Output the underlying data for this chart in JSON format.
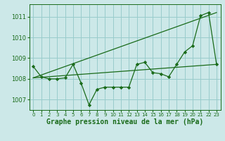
{
  "background_color": "#cce8e8",
  "grid_color": "#99cccc",
  "line_color": "#1a6b1a",
  "marker_color": "#1a6b1a",
  "xlabel": "Graphe pression niveau de la mer (hPa)",
  "xlabel_fontsize": 7,
  "xlim": [
    -0.5,
    23.5
  ],
  "ylim": [
    1006.5,
    1011.6
  ],
  "yticks": [
    1007,
    1008,
    1009,
    1010,
    1011
  ],
  "xticks": [
    0,
    1,
    2,
    3,
    4,
    5,
    6,
    7,
    8,
    9,
    10,
    11,
    12,
    13,
    14,
    15,
    16,
    17,
    18,
    19,
    20,
    21,
    22,
    23
  ],
  "series_main": {
    "x": [
      0,
      1,
      2,
      3,
      4,
      5,
      6,
      7,
      8,
      9,
      10,
      11,
      12,
      13,
      14,
      15,
      16,
      17,
      18,
      19,
      20,
      21,
      22,
      23
    ],
    "y": [
      1008.6,
      1008.1,
      1008.0,
      1008.0,
      1008.05,
      1008.7,
      1007.8,
      1006.75,
      1007.5,
      1007.6,
      1007.6,
      1007.6,
      1007.6,
      1008.7,
      1008.8,
      1008.3,
      1008.25,
      1008.1,
      1008.7,
      1009.3,
      1009.6,
      1011.05,
      1011.2,
      1008.7
    ]
  },
  "series_trend_upper": {
    "x": [
      0,
      23
    ],
    "y": [
      1008.05,
      1011.2
    ]
  },
  "series_trend_lower": {
    "x": [
      0,
      23
    ],
    "y": [
      1008.05,
      1008.7
    ]
  }
}
